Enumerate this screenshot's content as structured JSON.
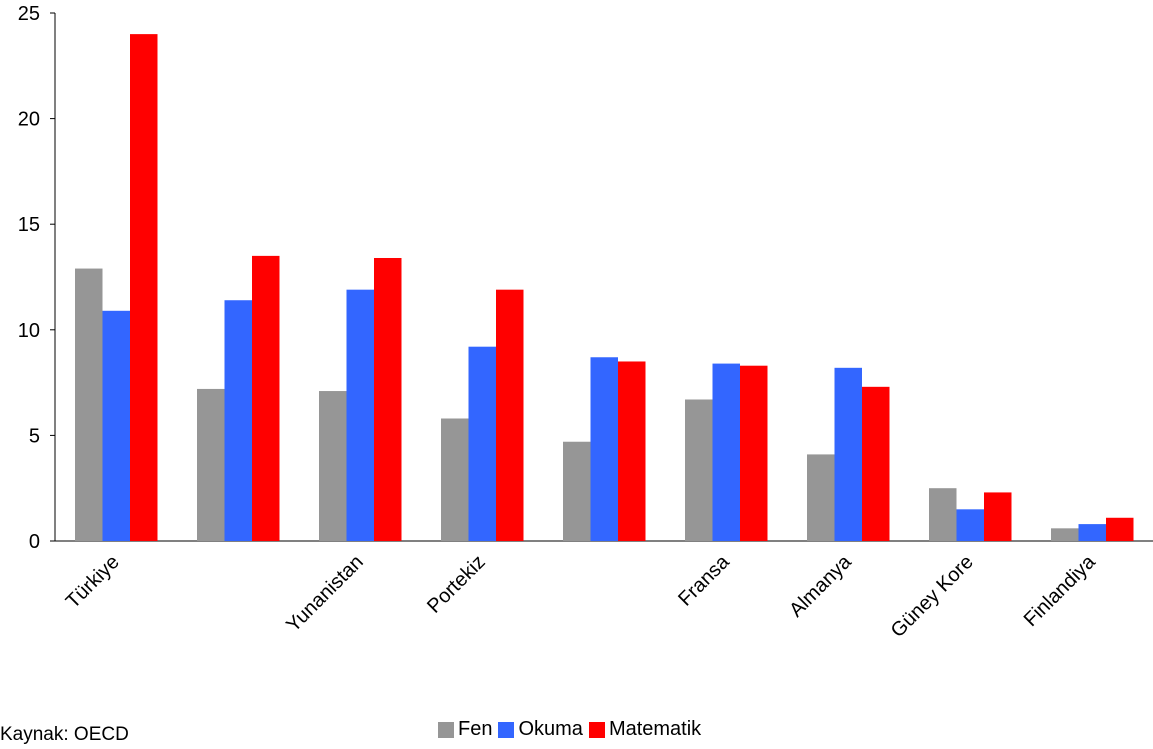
{
  "source_note": "Kaynak: OECD",
  "colors": {
    "Fen": "#969696",
    "Okuma": "#3366ff",
    "Matematik": "#ff0000"
  },
  "chart_data": {
    "type": "bar",
    "categories": [
      "Türkiye",
      "",
      "Yunanistan",
      "Portekiz",
      "",
      "Fransa",
      "Almanya",
      "Güney Kore",
      "Finlandiya"
    ],
    "series": [
      {
        "name": "Fen",
        "values": [
          12.9,
          7.2,
          7.1,
          5.8,
          4.7,
          6.7,
          4.1,
          2.5,
          0.6
        ]
      },
      {
        "name": "Okuma",
        "values": [
          10.9,
          11.4,
          11.9,
          9.2,
          8.7,
          8.4,
          8.2,
          1.5,
          0.8
        ]
      },
      {
        "name": "Matematik",
        "values": [
          24.0,
          13.5,
          13.4,
          11.9,
          8.5,
          8.3,
          7.3,
          2.3,
          1.1
        ]
      }
    ],
    "ylim": [
      0,
      25
    ],
    "yticks": [
      0,
      5,
      10,
      15,
      20,
      25
    ],
    "legend_position": "bottom",
    "grid": false
  }
}
